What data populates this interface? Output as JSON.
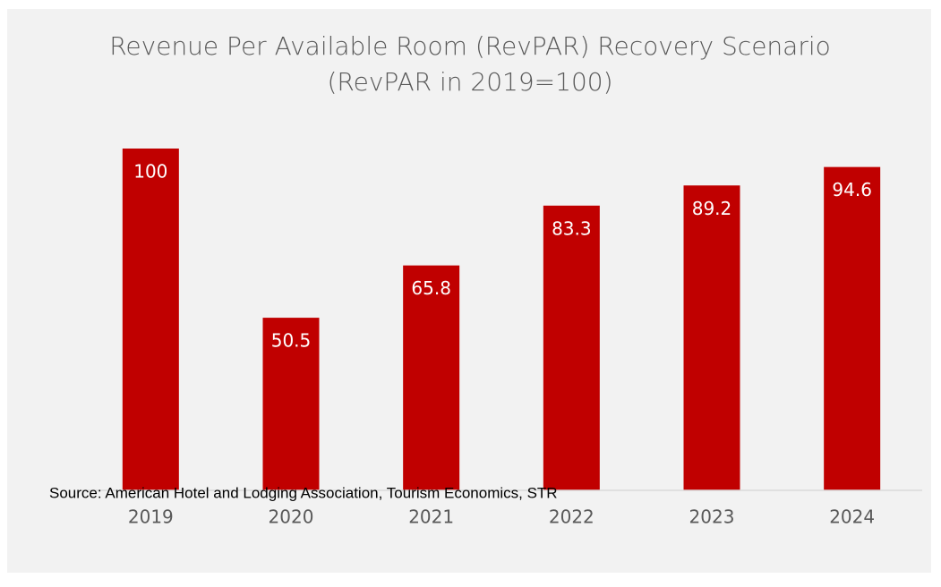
{
  "chart_data": {
    "type": "bar",
    "title": "Revenue Per Available Room (RevPAR) Recovery Scenario (RevPAR in 2019=100)",
    "categories": [
      "2019",
      "2020",
      "2021",
      "2022",
      "2023",
      "2024"
    ],
    "values": [
      100,
      50.5,
      65.8,
      83.3,
      89.2,
      94.6
    ],
    "color": "#c00000",
    "ylim": [
      0,
      100
    ],
    "annotation": "Source: American Hotel and Lodging Association, Tourism Economics, STR"
  }
}
